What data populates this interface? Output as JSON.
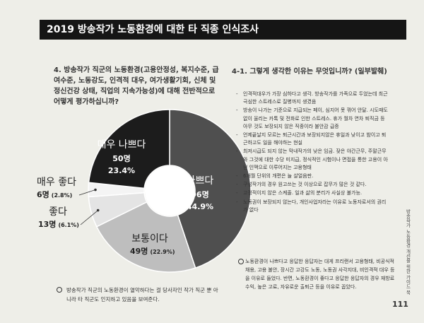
{
  "header": {
    "title": "2019 방송작가 노동환경에 대한 타 직종 인식조사"
  },
  "question": "4. 방송작가 직군의 노동환경(고용안정성, 복지수준, 급여수준, 노동강도, 인격적 대우, 여가생활기회, 신체 및 정신건강 상태, 직업의 지속가능성)에 대해 전반적으로 어떻게 평가하십니까?",
  "chart_data": {
    "type": "donut",
    "categories": [
      "나쁘다",
      "보통이다",
      "좋다",
      "매우 좋다",
      "매우 나쁘다"
    ],
    "values": [
      96,
      49,
      13,
      6,
      50
    ],
    "value_labels": [
      "96명",
      "49명",
      "13명",
      "6명",
      "50명"
    ],
    "percents": [
      44.9,
      22.9,
      6.1,
      2.8,
      23.4
    ],
    "percent_labels": [
      "44.9%",
      "(22.9%)",
      "(6.1%)",
      "(2.8%)",
      "23.4%"
    ],
    "colors": [
      "#4f4f4f",
      "#bebebe",
      "#e4e4e4",
      "#f4f4f4",
      "#1c1c1c"
    ]
  },
  "footnote": "방송작가 직군의 노동환경이 열악하다는 걸 당사자인 작가 직군 뿐 아니라 타 직군도 인지하고 있음을 보여준다.",
  "reasons": {
    "title": "4-1. 그렇게 생각한 이유는 무엇입니까? (일부발췌)",
    "items": [
      "인격적대우가 가장 심하다고 생각. 방송작가를 가족으로 두었는데 최근 극심한 스트레스로 질병까지 생겼음",
      "방송이 나가는 기준으로 지급되는 페이, 심지어 못 꺾어 안달. 시도때도 없이 울리는 카톡 및 전화로 인한 스트레스. 휴가 월차 연차 퇴직금 등 아무 것도 보장되지 않은 직종이라 불안감 급증",
      "언제끝날지 모르는 퇴근시간과 보장되지않은 휴일과 낮이고 밤이고 퇴근하고도 일을 해야하는 현실",
      "최저시급도 되지 않는 막내작가의 낮은 임금. 잦은 야간근무, 주말근무와 그것에 대한 수당 미지급, 정식적인 시험이나 면접을 통한 고용이 아닌 인맥으로 이루어지는 고용형태",
      "6개월 단위의 개편은 늘 살얼음판.",
      "구성작가의 경우 원고쓰는 것 이상으로 잡무가 많은 것 같다.",
      "고정적이지 않은 스케줄. 일과 삶의 분리가 사실상 불가능.",
      "노동권이 보장되지 않는다, 개인사업자라는 이유로 노동자로서의 권리가 없다"
    ],
    "note": "노동환경이 나쁘다고 응답한 응답자는 대게 프리랜서 고용형태, 비공식적 채용, 고용 불안, 장시간 고강도 노동, 노동권 사각지대, 비인격적 대우 등을 이유로 들었다. 반면, 노동환경이 좋다고 응답한 응답자의 경우 재방료 수익, 높은 고료, 자유로운 출퇴근 등을 이유로 꼽았다."
  },
  "side_text": "방송작가 노동환경 개선을 위한 가이드 북",
  "page_number": "111"
}
